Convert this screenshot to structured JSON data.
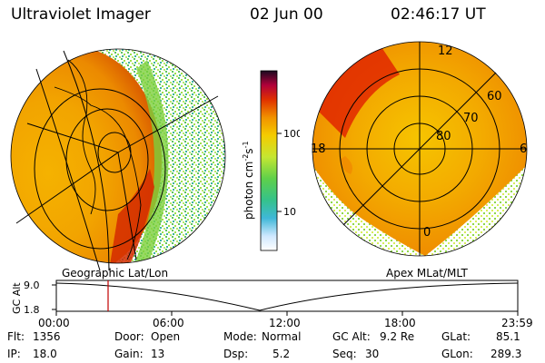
{
  "header": {
    "instrument": "Ultraviolet Imager",
    "date": "02 Jun 00",
    "time": "02:46:17 UT"
  },
  "colorbar": {
    "unit_label": "photon cm",
    "unit_sup1": "-2",
    "unit_mid": "s",
    "unit_sup2": "-1",
    "ticks": [
      "100",
      "10"
    ]
  },
  "panels": {
    "left_label": "Geographic Lat/Lon",
    "right_label": "Apex MLat/MLT"
  },
  "polar_labels": {
    "mlt": [
      "12",
      "18",
      "6",
      "0"
    ],
    "mlat": [
      "60",
      "70",
      "80"
    ]
  },
  "altitude_plot": {
    "axis_label": "GC Alt",
    "y_ticks": [
      "9.0",
      "1.8"
    ],
    "x_ticks": [
      "00:00",
      "06:00",
      "12:00",
      "18:00",
      "23:59"
    ]
  },
  "status": {
    "flt_label": "Flt:",
    "flt_value": "1356",
    "ip_label": "IP:",
    "ip_value": "18.0",
    "door_label": "Door:",
    "door_value": "Open",
    "gain_label": "Gain:",
    "gain_value": "13",
    "mode_label": "Mode:",
    "mode_value": "Normal",
    "dsp_label": "Dsp:",
    "dsp_value": "5.2",
    "gcalt_label": "GC Alt:",
    "gcalt_value": "9.2 Re",
    "seq_label": "Seq:",
    "seq_value": "30",
    "glat_label": "GLat:",
    "glat_value": "85.1",
    "glon_label": "GLon:",
    "glon_value": "289.3"
  },
  "colors": {
    "accent_marker": "#c00000",
    "grid": "#000000"
  }
}
